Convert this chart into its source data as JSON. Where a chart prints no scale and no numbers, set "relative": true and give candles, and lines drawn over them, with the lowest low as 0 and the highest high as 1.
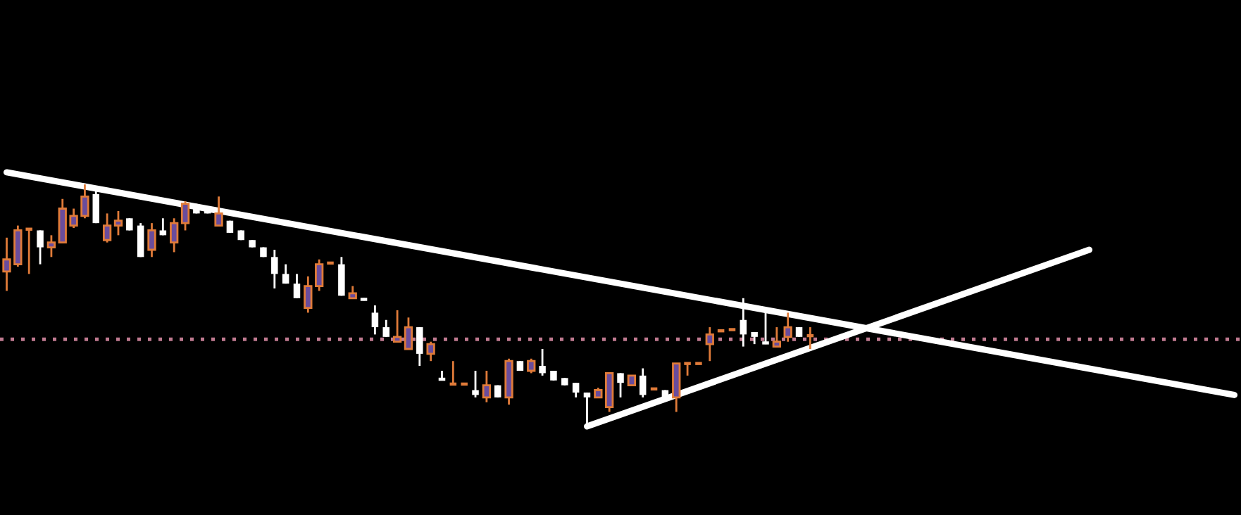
{
  "chart_data": {
    "type": "candlestick",
    "relative": true,
    "categories": [
      null,
      null,
      null,
      null,
      null,
      null,
      null,
      null,
      null,
      null,
      null,
      null,
      null,
      null,
      null,
      null,
      null,
      null,
      null,
      null,
      null,
      null,
      null,
      null,
      null,
      null,
      null,
      null,
      null,
      null,
      null,
      null,
      null,
      null,
      null,
      null,
      null,
      null,
      null,
      null,
      null,
      null,
      null,
      null,
      null,
      null,
      null,
      null,
      null,
      null,
      null,
      null,
      null,
      null,
      null,
      null,
      null,
      null,
      null,
      null,
      null,
      null,
      null,
      null,
      null,
      null,
      null,
      null,
      null,
      null,
      null,
      null,
      null,
      null,
      null,
      null,
      null,
      null,
      null,
      null,
      null,
      null,
      null,
      null,
      null,
      null,
      null,
      null,
      null,
      null,
      null,
      null,
      null,
      null,
      null,
      null,
      null,
      null,
      null,
      null,
      null,
      null,
      null,
      null,
      null,
      null,
      null,
      null,
      null,
      null,
      null
    ],
    "ohlc": [
      [
        0.64,
        0.78,
        0.56,
        0.69
      ],
      [
        0.67,
        0.83,
        0.66,
        0.81
      ],
      [
        0.81,
        0.82,
        0.63,
        0.82
      ],
      [
        0.81,
        0.81,
        0.67,
        0.74
      ],
      [
        0.74,
        0.79,
        0.7,
        0.76
      ],
      [
        0.76,
        0.94,
        0.76,
        0.9
      ],
      [
        0.83,
        0.9,
        0.82,
        0.87
      ],
      [
        0.87,
        1.0,
        0.86,
        0.95
      ],
      [
        0.96,
        0.98,
        0.84,
        0.84
      ],
      [
        0.77,
        0.88,
        0.76,
        0.83
      ],
      [
        0.83,
        0.89,
        0.79,
        0.85
      ],
      [
        0.86,
        0.86,
        0.81,
        0.81
      ],
      [
        0.83,
        0.84,
        0.7,
        0.7
      ],
      [
        0.73,
        0.84,
        0.7,
        0.81
      ],
      [
        0.81,
        0.86,
        0.79,
        0.79
      ],
      [
        0.76,
        0.86,
        0.72,
        0.84
      ],
      [
        0.84,
        0.93,
        0.81,
        0.92
      ],
      [
        0.91,
        0.92,
        0.88,
        0.88
      ],
      [
        0.9,
        0.9,
        0.88,
        0.88
      ],
      [
        0.83,
        0.95,
        0.83,
        0.88
      ],
      [
        0.85,
        0.85,
        0.8,
        0.8
      ],
      [
        0.81,
        0.81,
        0.77,
        0.77
      ],
      [
        0.77,
        0.77,
        0.74,
        0.74
      ],
      [
        0.74,
        0.74,
        0.7,
        0.7
      ],
      [
        0.7,
        0.73,
        0.57,
        0.63
      ],
      [
        0.63,
        0.67,
        0.59,
        0.59
      ],
      [
        0.59,
        0.63,
        0.53,
        0.53
      ],
      [
        0.49,
        0.62,
        0.47,
        0.58
      ],
      [
        0.58,
        0.69,
        0.56,
        0.67
      ],
      [
        0.67,
        0.68,
        0.67,
        0.68
      ],
      [
        0.67,
        0.7,
        0.54,
        0.54
      ],
      [
        0.53,
        0.58,
        0.53,
        0.55
      ],
      [
        0.53,
        0.53,
        0.52,
        0.52
      ],
      [
        0.47,
        0.5,
        0.38,
        0.41
      ],
      [
        0.41,
        0.44,
        0.37,
        0.37
      ],
      [
        0.35,
        0.48,
        0.35,
        0.37
      ],
      [
        0.32,
        0.45,
        0.32,
        0.41
      ],
      [
        0.41,
        0.41,
        0.25,
        0.3
      ],
      [
        0.3,
        0.35,
        0.27,
        0.34
      ],
      [
        0.2,
        0.23,
        0.19,
        0.19
      ],
      [
        0.17,
        0.27,
        0.17,
        0.18
      ],
      [
        0.17,
        0.18,
        0.17,
        0.18
      ],
      [
        0.15,
        0.23,
        0.12,
        0.13
      ],
      [
        0.12,
        0.23,
        0.1,
        0.17
      ],
      [
        0.17,
        0.17,
        0.12,
        0.12
      ],
      [
        0.12,
        0.28,
        0.09,
        0.27
      ],
      [
        0.27,
        0.27,
        0.23,
        0.23
      ],
      [
        0.23,
        0.28,
        0.22,
        0.27
      ],
      [
        0.25,
        0.32,
        0.21,
        0.22
      ],
      [
        0.23,
        0.23,
        0.19,
        0.19
      ],
      [
        0.2,
        0.2,
        0.17,
        0.17
      ],
      [
        0.18,
        0.18,
        0.12,
        0.14
      ],
      [
        0.14,
        0.14,
        0.0,
        0.12
      ],
      [
        0.12,
        0.16,
        0.12,
        0.15
      ],
      [
        0.08,
        0.22,
        0.06,
        0.22
      ],
      [
        0.22,
        0.22,
        0.12,
        0.18
      ],
      [
        0.17,
        0.21,
        0.17,
        0.21
      ],
      [
        0.21,
        0.24,
        0.12,
        0.13
      ],
      [
        0.15,
        0.16,
        0.15,
        0.16
      ],
      [
        0.15,
        0.15,
        0.12,
        0.12
      ],
      [
        0.12,
        0.26,
        0.06,
        0.26
      ],
      [
        0.26,
        0.26,
        0.21,
        0.26
      ],
      [
        0.26,
        0.26,
        0.26,
        0.26
      ],
      [
        0.34,
        0.41,
        0.27,
        0.38
      ],
      [
        0.39,
        0.4,
        0.39,
        0.4
      ],
      [
        0.4,
        0.4,
        0.4,
        0.4
      ],
      [
        0.44,
        0.53,
        0.33,
        0.38
      ],
      [
        0.39,
        0.39,
        0.34,
        0.37
      ],
      [
        0.35,
        0.48,
        0.34,
        0.34
      ],
      [
        0.33,
        0.41,
        0.33,
        0.35
      ],
      [
        0.37,
        0.47,
        0.35,
        0.41
      ],
      [
        0.41,
        0.41,
        0.37,
        0.37
      ],
      [
        0.37,
        0.41,
        0.32,
        0.38
      ],
      null,
      null,
      null,
      null,
      null,
      null,
      null,
      null,
      null,
      null,
      null,
      null,
      null,
      null,
      null,
      null,
      null,
      null,
      null,
      null,
      null,
      null,
      null,
      null,
      null,
      null,
      null,
      null,
      null,
      null,
      null,
      null,
      null,
      null,
      null,
      null,
      null,
      null
    ],
    "colors": [
      "#e07b39",
      "#e07b39",
      "#e07b39",
      "#ffffff",
      "#e07b39",
      "#e07b39",
      "#e07b39",
      "#e07b39",
      "#ffffff",
      "#e07b39",
      "#e07b39",
      "#ffffff",
      "#ffffff",
      "#e07b39",
      "#ffffff",
      "#e07b39",
      "#e07b39",
      "#ffffff",
      "#ffffff",
      "#e07b39",
      "#ffffff",
      "#ffffff",
      "#ffffff",
      "#ffffff",
      "#ffffff",
      "#ffffff",
      "#ffffff",
      "#e07b39",
      "#e07b39",
      "#e07b39",
      "#ffffff",
      "#e07b39",
      "#ffffff",
      "#ffffff",
      "#ffffff",
      "#e07b39",
      "#e07b39",
      "#ffffff",
      "#e07b39",
      "#ffffff",
      "#e07b39",
      "#e07b39",
      "#ffffff",
      "#e07b39",
      "#ffffff",
      "#e07b39",
      "#ffffff",
      "#e07b39",
      "#ffffff",
      "#ffffff",
      "#ffffff",
      "#ffffff",
      "#ffffff",
      "#e07b39",
      "#e07b39",
      "#ffffff",
      "#e07b39",
      "#ffffff",
      "#e07b39",
      "#ffffff",
      "#e07b39",
      "#e07b39",
      "#e07b39",
      "#e07b39",
      "#e07b39",
      "#e07b39",
      "#ffffff",
      "#ffffff",
      "#ffffff",
      "#e07b39",
      "#e07b39",
      "#ffffff",
      "#e07b39",
      null,
      null,
      null,
      null,
      null,
      null,
      null,
      null,
      null,
      null,
      null,
      null,
      null,
      null,
      null,
      null,
      null,
      null,
      null,
      null,
      null,
      null,
      null,
      null,
      null,
      null,
      null,
      null,
      null,
      null,
      null,
      null,
      null,
      null,
      null,
      null,
      null,
      null
    ],
    "series": [
      {
        "type": "line",
        "color": "#ffffff",
        "values": [
          1.05,
          null,
          null,
          null,
          null,
          null,
          null,
          null,
          null,
          null,
          null,
          null,
          null,
          null,
          null,
          null,
          null,
          null,
          null,
          null,
          null,
          null,
          null,
          null,
          null,
          null,
          null,
          null,
          null,
          null,
          null,
          null,
          null,
          null,
          null,
          null,
          null,
          null,
          null,
          null,
          null,
          null,
          null,
          null,
          null,
          null,
          null,
          null,
          null,
          null,
          null,
          null,
          null,
          null,
          null,
          null,
          null,
          null,
          null,
          null,
          null,
          null,
          null,
          null,
          null,
          null,
          null,
          null,
          null,
          null,
          null,
          null,
          null,
          null,
          null,
          null,
          null,
          null,
          null,
          null,
          null,
          null,
          null,
          null,
          null,
          null,
          null,
          null,
          null,
          null,
          null,
          null,
          null,
          null,
          null,
          null,
          null,
          null,
          null,
          null,
          null,
          null,
          null,
          null,
          null,
          null,
          null,
          null,
          null,
          null,
          0.13
        ]
      },
      {
        "type": "line",
        "color": "#ffffff",
        "values": [
          null,
          null,
          null,
          null,
          null,
          null,
          null,
          null,
          null,
          null,
          null,
          null,
          null,
          null,
          null,
          null,
          null,
          null,
          null,
          null,
          null,
          null,
          null,
          null,
          null,
          null,
          null,
          null,
          null,
          null,
          null,
          null,
          null,
          null,
          null,
          null,
          null,
          null,
          null,
          null,
          null,
          null,
          null,
          null,
          null,
          null,
          null,
          null,
          null,
          null,
          null,
          null,
          0.0,
          null,
          null,
          null,
          null,
          null,
          null,
          null,
          null,
          null,
          null,
          null,
          null,
          null,
          null,
          null,
          null,
          null,
          null,
          null,
          null,
          null,
          null,
          null,
          null,
          null,
          null,
          null,
          null,
          null,
          null,
          null,
          null,
          null,
          null,
          null,
          null,
          null,
          null,
          null,
          null,
          null,
          null,
          null,
          null,
          0.73,
          null,
          null,
          null,
          null,
          null,
          null,
          null,
          null,
          null,
          null,
          null,
          null,
          null
        ]
      }
    ],
    "ref_lines": [
      {
        "axis": "y",
        "value": 0.36,
        "color": "#c07a90",
        "line_style": "dotted"
      }
    ]
  }
}
